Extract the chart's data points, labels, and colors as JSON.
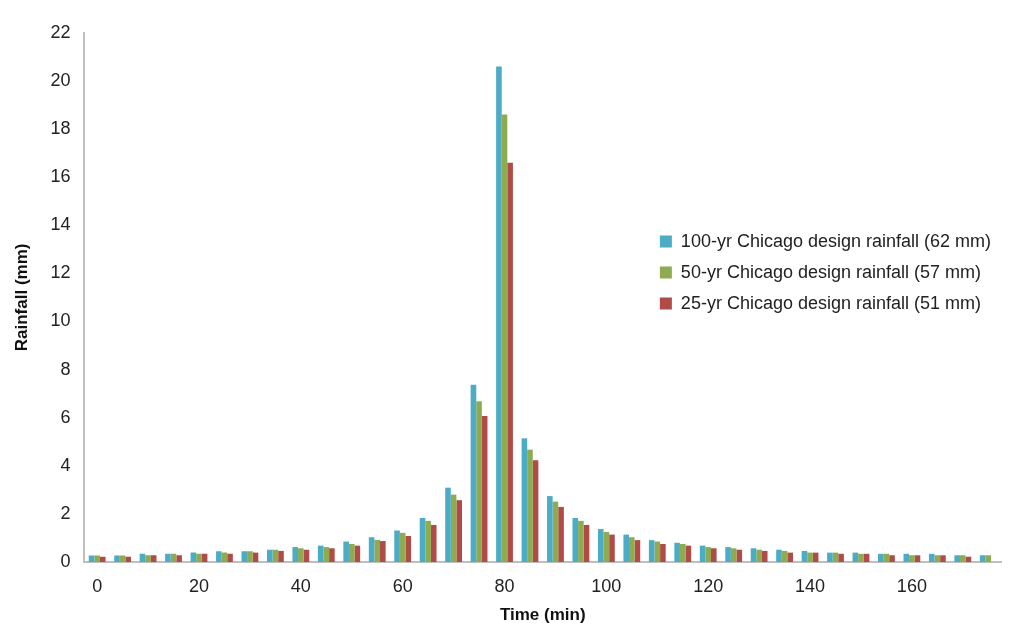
{
  "chart_data": {
    "type": "bar",
    "xlabel": "Time (min)",
    "ylabel": "Rainfall (mm)",
    "categories": [
      "0",
      null,
      null,
      null,
      "20",
      null,
      null,
      null,
      "40",
      null,
      null,
      null,
      "60",
      null,
      null,
      null,
      "80",
      null,
      null,
      null,
      "100",
      null,
      null,
      null,
      "120",
      null,
      null,
      null,
      "140",
      null,
      null,
      null,
      "160",
      null,
      null,
      null
    ],
    "series": [
      {
        "name": "100-yr Chicago design rainfall (62 mm)",
        "color": "#4bacc6",
        "values": [
          0.27,
          0.27,
          0.34,
          0.34,
          0.39,
          0.45,
          0.45,
          0.51,
          0.62,
          0.68,
          0.85,
          1.03,
          1.31,
          1.83,
          3.09,
          7.37,
          20.6,
          5.14,
          2.74,
          1.83,
          1.37,
          1.14,
          0.91,
          0.8,
          0.68,
          0.62,
          0.57,
          0.51,
          0.46,
          0.39,
          0.39,
          0.34,
          0.34,
          0.34,
          0.28,
          0.28
        ]
      },
      {
        "name": "50-yr Chicago design rainfall (57 mm)",
        "color": "#8fab4f",
        "values": [
          0.27,
          0.27,
          0.28,
          0.34,
          0.34,
          0.39,
          0.45,
          0.51,
          0.57,
          0.62,
          0.75,
          0.92,
          1.21,
          1.71,
          2.8,
          6.68,
          18.6,
          4.67,
          2.51,
          1.71,
          1.25,
          1.03,
          0.85,
          0.75,
          0.62,
          0.57,
          0.51,
          0.46,
          0.39,
          0.39,
          0.34,
          0.34,
          0.28,
          0.28,
          0.28,
          0.28
        ]
      },
      {
        "name": "25-yr Chicago design rainfall (51 mm)",
        "color": "#b04b48",
        "values": [
          0.22,
          0.22,
          0.28,
          0.28,
          0.34,
          0.34,
          0.39,
          0.46,
          0.51,
          0.57,
          0.68,
          0.87,
          1.08,
          1.54,
          2.57,
          6.07,
          16.6,
          4.23,
          2.29,
          1.54,
          1.14,
          0.91,
          0.75,
          0.68,
          0.57,
          0.51,
          0.46,
          0.39,
          0.39,
          0.34,
          0.34,
          0.28,
          0.28,
          0.28,
          0.22,
          null
        ]
      }
    ],
    "ylim": [
      0,
      22
    ],
    "yticks": [
      0,
      2,
      4,
      6,
      8,
      10,
      12,
      14,
      16,
      18,
      20,
      22
    ],
    "legend": "top right"
  }
}
